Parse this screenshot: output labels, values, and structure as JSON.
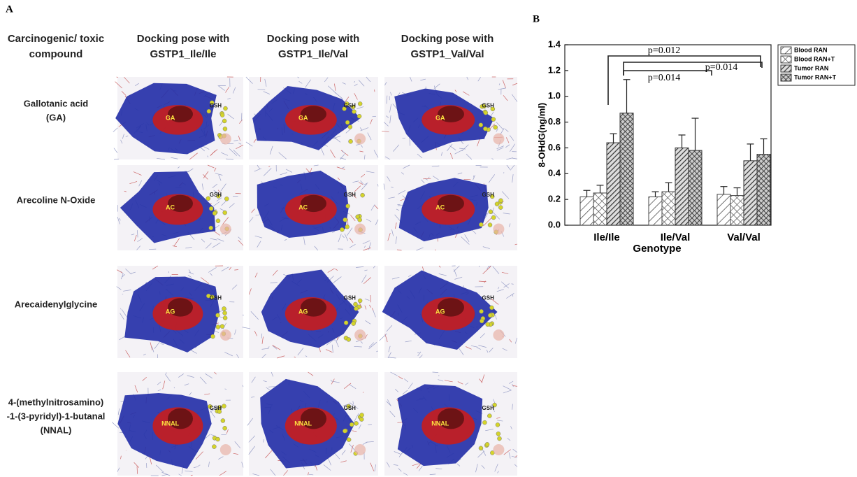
{
  "panel_a": {
    "label": "A",
    "headers": [
      [
        "Carcinogenic/ toxic",
        "compound"
      ],
      [
        "Docking pose with",
        "GSTP1_Ile/Ile"
      ],
      [
        "Docking pose with",
        "GSTP1_Ile/Val"
      ],
      [
        "Docking pose with",
        "GSTP1_Val/Val"
      ]
    ],
    "rows": [
      {
        "compound": [
          "Gallotanic acid",
          "(GA)"
        ],
        "poses": [
          [
            "GA",
            "GSH"
          ],
          [
            "GA",
            "GSH"
          ],
          [
            "GA",
            "GSH"
          ]
        ]
      },
      {
        "compound": [
          "Arecoline N-Oxide"
        ],
        "poses": [
          [
            "AC",
            "GSH"
          ],
          [
            "AC",
            "GSH"
          ],
          [
            "AC",
            "GSH"
          ]
        ]
      },
      {
        "compound": [
          "Arecaidenylglycine"
        ],
        "poses": [
          [
            "AG",
            "GSH"
          ],
          [
            "AG",
            "GSH"
          ],
          [
            "AG",
            "GSH"
          ]
        ]
      },
      {
        "compound": [
          "4-(methylnitrosamino)",
          "-1-(3-pyridyl)-1-butanal",
          "(NNAL)"
        ],
        "poses": [
          [
            "NNAL",
            "GSH"
          ],
          [
            "NNAL",
            "GSH"
          ],
          [
            "NNAL",
            "GSH"
          ]
        ]
      }
    ]
  },
  "chart_data": {
    "type": "bar",
    "panel_label": "B",
    "categories": [
      "Ile/Ile",
      "Ile/Val",
      "Val/Val"
    ],
    "x_label": "Genotype",
    "y_label": "8-OHdG(ng/ml)",
    "ylim": [
      0,
      1.4
    ],
    "yticks": [
      {
        "value": 0,
        "label": "0.0"
      },
      0.2,
      0.4,
      0.6,
      0.8,
      {
        "value": 1,
        "label": "1.0"
      },
      1.2,
      1.4
    ],
    "series": [
      {
        "name": "Blood RAN",
        "color": "#444444",
        "values": [
          0.22,
          0.22,
          0.24
        ],
        "errors": [
          0.05,
          0.04,
          0.06
        ]
      },
      {
        "name": "Blood RAN+T",
        "color": "#444444",
        "values": [
          0.25,
          0.26,
          0.23
        ],
        "errors": [
          0.06,
          0.07,
          0.06
        ]
      },
      {
        "name": "Tumor RAN",
        "color": "#333333",
        "values": [
          0.64,
          0.6,
          0.5
        ],
        "errors": [
          0.07,
          0.1,
          0.13
        ]
      },
      {
        "name": "Tumor RAN+T",
        "color": "#333333",
        "values": [
          0.87,
          0.58,
          0.55
        ],
        "errors": [
          0.26,
          0.25,
          0.12
        ]
      }
    ],
    "annotations": [
      "p=0.012",
      "p=0.014",
      "p=0.014"
    ]
  }
}
